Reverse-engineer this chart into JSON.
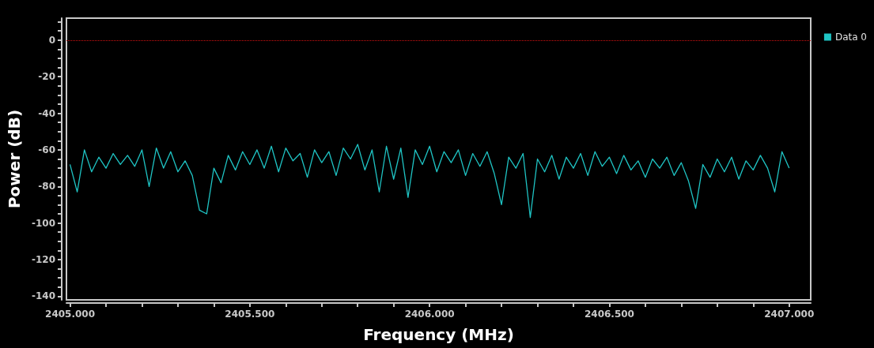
{
  "chart_data": {
    "type": "line",
    "xlabel": "Frequency (MHz)",
    "ylabel": "Power (dB)",
    "legend": "top right",
    "grid": false,
    "marker": "none",
    "line_style": "solid",
    "xlim": [
      2404.99,
      2407.06
    ],
    "ylim": [
      -142,
      12
    ],
    "xticks": [
      {
        "value": 2405.0,
        "label": "2405.000"
      },
      {
        "value": 2405.1,
        "label": null
      },
      {
        "value": 2405.2,
        "label": null
      },
      {
        "value": 2405.3,
        "label": null
      },
      {
        "value": 2405.4,
        "label": null
      },
      {
        "value": 2405.5,
        "label": "2405.500"
      },
      {
        "value": 2405.6,
        "label": null
      },
      {
        "value": 2405.7,
        "label": null
      },
      {
        "value": 2405.8,
        "label": null
      },
      {
        "value": 2405.9,
        "label": null
      },
      {
        "value": 2406.0,
        "label": "2406.000"
      },
      {
        "value": 2406.1,
        "label": null
      },
      {
        "value": 2406.2,
        "label": null
      },
      {
        "value": 2406.3,
        "label": null
      },
      {
        "value": 2406.4,
        "label": null
      },
      {
        "value": 2406.5,
        "label": "2406.500"
      },
      {
        "value": 2406.6,
        "label": null
      },
      {
        "value": 2406.7,
        "label": null
      },
      {
        "value": 2406.8,
        "label": null
      },
      {
        "value": 2406.9,
        "label": null
      },
      {
        "value": 2407.0,
        "label": "2407.000"
      }
    ],
    "yticks": [
      -140,
      {
        "value": -135,
        "label": null
      },
      {
        "value": -130,
        "label": null
      },
      {
        "value": -125,
        "label": null
      },
      -120,
      {
        "value": -115,
        "label": null
      },
      {
        "value": -110,
        "label": null
      },
      {
        "value": -105,
        "label": null
      },
      -100,
      {
        "value": -95,
        "label": null
      },
      {
        "value": -90,
        "label": null
      },
      {
        "value": -85,
        "label": null
      },
      -80,
      {
        "value": -75,
        "label": null
      },
      {
        "value": -70,
        "label": null
      },
      {
        "value": -65,
        "label": null
      },
      -60,
      {
        "value": -55,
        "label": null
      },
      {
        "value": -50,
        "label": null
      },
      {
        "value": -45,
        "label": null
      },
      -40,
      {
        "value": -35,
        "label": null
      },
      {
        "value": -30,
        "label": null
      },
      {
        "value": -25,
        "label": null
      },
      -20,
      {
        "value": -15,
        "label": null
      },
      {
        "value": -10,
        "label": null
      },
      {
        "value": -5,
        "label": null
      },
      0,
      {
        "value": 5,
        "label": null
      },
      {
        "value": 10,
        "label": null
      }
    ],
    "ref_lines": [
      {
        "axis": "y",
        "value": 0,
        "color": "#d01010",
        "line_style": "dotted"
      }
    ],
    "x": [
      2405.0,
      2405.02,
      2405.04,
      2405.06,
      2405.08,
      2405.1,
      2405.12,
      2405.14,
      2405.16,
      2405.18,
      2405.2,
      2405.22,
      2405.24,
      2405.26,
      2405.28,
      2405.3,
      2405.32,
      2405.34,
      2405.36,
      2405.38,
      2405.4,
      2405.42,
      2405.44,
      2405.46,
      2405.48,
      2405.5,
      2405.52,
      2405.54,
      2405.56,
      2405.58,
      2405.6,
      2405.62,
      2405.64,
      2405.66,
      2405.68,
      2405.7,
      2405.72,
      2405.74,
      2405.76,
      2405.78,
      2405.8,
      2405.82,
      2405.84,
      2405.86,
      2405.88,
      2405.9,
      2405.92,
      2405.94,
      2405.96,
      2405.98,
      2406.0,
      2406.02,
      2406.04,
      2406.06,
      2406.08,
      2406.1,
      2406.12,
      2406.14,
      2406.16,
      2406.18,
      2406.2,
      2406.22,
      2406.24,
      2406.26,
      2406.28,
      2406.3,
      2406.32,
      2406.34,
      2406.36,
      2406.38,
      2406.4,
      2406.42,
      2406.44,
      2406.46,
      2406.48,
      2406.5,
      2406.52,
      2406.54,
      2406.56,
      2406.58,
      2406.6,
      2406.62,
      2406.64,
      2406.66,
      2406.68,
      2406.7,
      2406.72,
      2406.74,
      2406.76,
      2406.78,
      2406.8,
      2406.82,
      2406.84,
      2406.86,
      2406.88,
      2406.9,
      2406.92,
      2406.94,
      2406.96,
      2406.98,
      2407.0
    ],
    "series": [
      {
        "name": "Data 0",
        "color": "#1fc4c4",
        "values": [
          -68,
          -83,
          -60,
          -72,
          -64,
          -70,
          -62,
          -68,
          -63,
          -69,
          -60,
          -80,
          -59,
          -70,
          -61,
          -72,
          -66,
          -74,
          -93,
          -95,
          -70,
          -78,
          -63,
          -71,
          -61,
          -68,
          -60,
          -70,
          -58,
          -72,
          -59,
          -66,
          -62,
          -75,
          -60,
          -67,
          -61,
          -74,
          -59,
          -65,
          -57,
          -71,
          -60,
          -83,
          -58,
          -76,
          -59,
          -86,
          -60,
          -68,
          -58,
          -72,
          -61,
          -67,
          -60,
          -74,
          -62,
          -69,
          -61,
          -73,
          -90,
          -64,
          -70,
          -62,
          -97,
          -65,
          -72,
          -63,
          -76,
          -64,
          -70,
          -62,
          -74,
          -61,
          -69,
          -64,
          -73,
          -63,
          -71,
          -66,
          -75,
          -65,
          -70,
          -64,
          -74,
          -67,
          -77,
          -92,
          -68,
          -75,
          -65,
          -72,
          -64,
          -76,
          -66,
          -71,
          -63,
          -70,
          -83,
          -61,
          -70
        ]
      }
    ]
  }
}
